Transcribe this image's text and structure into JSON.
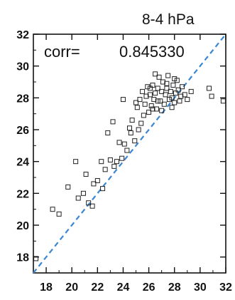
{
  "chart_data": {
    "type": "scatter",
    "title": "8-4 hPa",
    "annotation": {
      "label": "corr=",
      "value": "0.845330"
    },
    "xlim": [
      17,
      32
    ],
    "ylim": [
      17,
      32
    ],
    "xticks": [
      "18",
      "20",
      "22",
      "24",
      "26",
      "28",
      "30",
      "32"
    ],
    "yticks": [
      "18",
      "20",
      "22",
      "24",
      "26",
      "28",
      "30",
      "32"
    ],
    "reference_line": {
      "type": "identity",
      "style": "dashed",
      "color": "#3b86d4"
    },
    "marker": {
      "shape": "open-square",
      "color": "#222222"
    },
    "grid": false,
    "series": [
      {
        "points": [
          [
            17.2,
            17.9
          ],
          [
            18.5,
            21.0
          ],
          [
            19.0,
            20.7
          ],
          [
            19.7,
            22.4
          ],
          [
            20.3,
            24.0
          ],
          [
            20.5,
            21.7
          ],
          [
            20.9,
            22.0
          ],
          [
            21.1,
            23.2
          ],
          [
            21.3,
            21.4
          ],
          [
            21.6,
            21.2
          ],
          [
            21.7,
            22.6
          ],
          [
            22.0,
            22.8
          ],
          [
            22.3,
            24.0
          ],
          [
            22.4,
            22.3
          ],
          [
            22.6,
            23.5
          ],
          [
            22.8,
            25.8
          ],
          [
            23.0,
            24.1
          ],
          [
            23.3,
            23.7
          ],
          [
            23.5,
            24.0
          ],
          [
            23.7,
            25.2
          ],
          [
            23.9,
            24.2
          ],
          [
            24.1,
            25.1
          ],
          [
            24.3,
            24.7
          ],
          [
            24.5,
            26.1
          ],
          [
            24.7,
            26.6
          ],
          [
            24.9,
            25.3
          ],
          [
            25.1,
            27.4
          ],
          [
            25.2,
            26.0
          ],
          [
            25.3,
            27.9
          ],
          [
            25.5,
            28.4
          ],
          [
            25.6,
            26.9
          ],
          [
            25.7,
            27.6
          ],
          [
            25.8,
            28.1
          ],
          [
            25.9,
            28.7
          ],
          [
            26.0,
            27.1
          ],
          [
            26.1,
            28.2
          ],
          [
            26.2,
            27.5
          ],
          [
            26.3,
            28.8
          ],
          [
            26.4,
            27.9
          ],
          [
            26.5,
            29.5
          ],
          [
            26.5,
            28.3
          ],
          [
            26.6,
            27.3
          ],
          [
            26.7,
            28.6
          ],
          [
            26.8,
            29.3
          ],
          [
            26.9,
            27.8
          ],
          [
            27.0,
            28.4
          ],
          [
            27.1,
            29.0
          ],
          [
            27.2,
            27.6
          ],
          [
            27.3,
            28.2
          ],
          [
            27.4,
            28.9
          ],
          [
            27.5,
            29.4
          ],
          [
            27.6,
            27.9
          ],
          [
            27.7,
            28.4
          ],
          [
            27.8,
            28.0
          ],
          [
            27.9,
            28.8
          ],
          [
            28.0,
            27.7
          ],
          [
            28.1,
            28.3
          ],
          [
            28.2,
            29.1
          ],
          [
            28.3,
            28.5
          ],
          [
            28.4,
            27.8
          ],
          [
            28.5,
            28.1
          ],
          [
            28.6,
            28.7
          ],
          [
            28.8,
            28.2
          ],
          [
            29.0,
            27.9
          ],
          [
            29.3,
            28.4
          ],
          [
            26.3,
            27.3
          ],
          [
            26.7,
            27.8
          ],
          [
            27.0,
            27.2
          ],
          [
            27.4,
            28.6
          ],
          [
            27.8,
            27.4
          ],
          [
            25.4,
            26.4
          ],
          [
            24.6,
            25.8
          ],
          [
            23.2,
            26.5
          ],
          [
            26.1,
            28.6
          ],
          [
            28.0,
            29.2
          ],
          [
            30.7,
            28.6
          ],
          [
            30.9,
            28.1
          ],
          [
            31.8,
            27.8
          ],
          [
            24.0,
            27.9
          ],
          [
            25.0,
            27.7
          ]
        ]
      }
    ]
  }
}
